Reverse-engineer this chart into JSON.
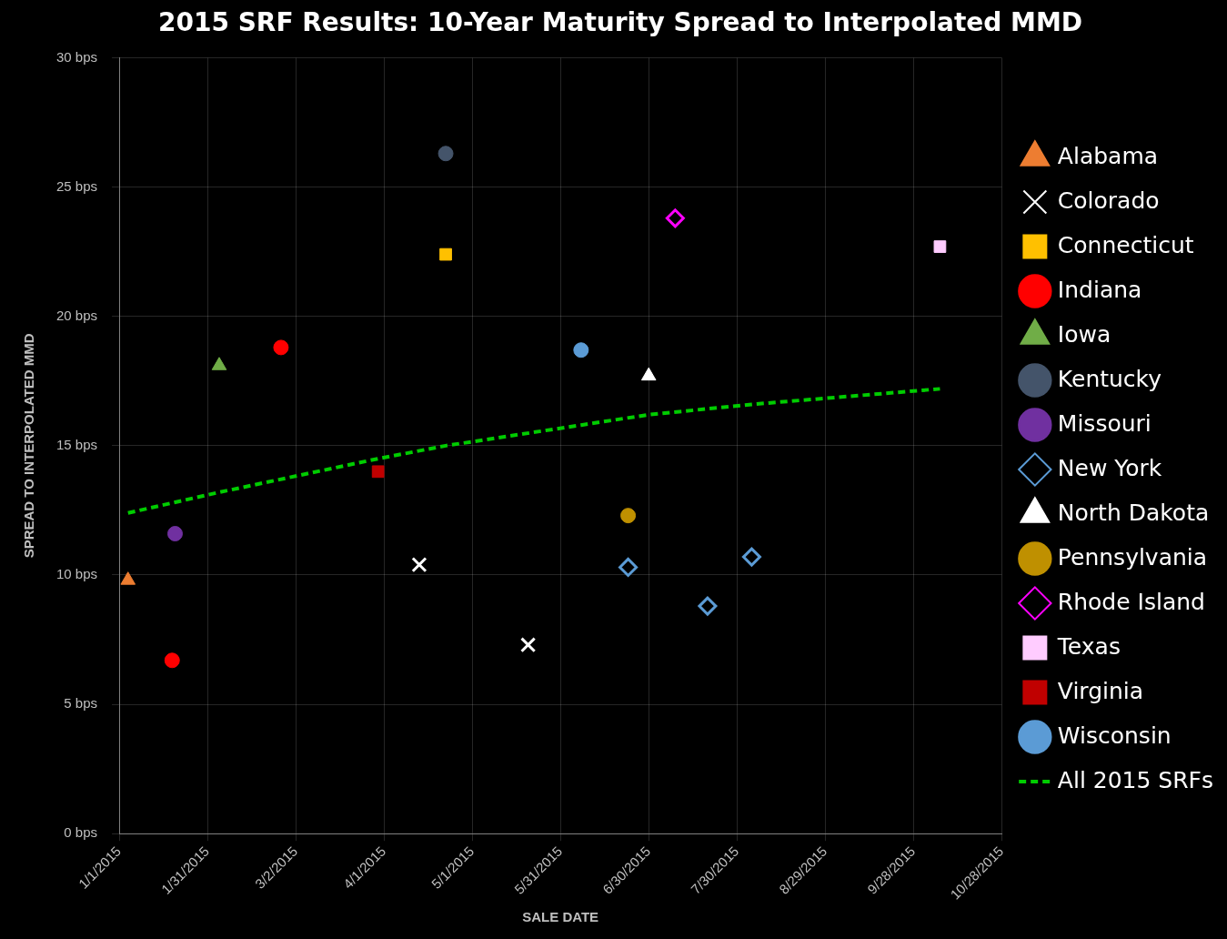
{
  "chart_data": {
    "type": "scatter",
    "title": "2015 SRF Results: 10-Year Maturity Spread to Interpolated MMD",
    "xlabel": "SALE DATE",
    "ylabel": "SPREAD TO INTERPOLATED MMD",
    "xlim": [
      "2015-01-01",
      "2015-10-28"
    ],
    "xticks": [
      {
        "value": "2015-01-01",
        "label": "1/1/2015"
      },
      {
        "value": "2015-01-31",
        "label": "1/31/2015"
      },
      {
        "value": "2015-03-02",
        "label": "3/2/2015"
      },
      {
        "value": "2015-04-01",
        "label": "4/1/2015"
      },
      {
        "value": "2015-05-01",
        "label": "5/1/2015"
      },
      {
        "value": "2015-05-31",
        "label": "5/31/2015"
      },
      {
        "value": "2015-06-30",
        "label": "6/30/2015"
      },
      {
        "value": "2015-07-30",
        "label": "7/30/2015"
      },
      {
        "value": "2015-08-29",
        "label": "8/29/2015"
      },
      {
        "value": "2015-09-28",
        "label": "9/28/2015"
      },
      {
        "value": "2015-10-28",
        "label": "10/28/2015"
      }
    ],
    "ylim": [
      0,
      30
    ],
    "yticks": [
      {
        "value": 0,
        "label": "0 bps"
      },
      {
        "value": 5,
        "label": "5 bps"
      },
      {
        "value": 10,
        "label": "10 bps"
      },
      {
        "value": 15,
        "label": "15 bps"
      },
      {
        "value": 20,
        "label": "20 bps"
      },
      {
        "value": 25,
        "label": "25 bps"
      },
      {
        "value": 30,
        "label": "30 bps"
      }
    ],
    "grid": true,
    "legend": "right",
    "series": [
      {
        "name": "Alabama",
        "color": "#ed7d31",
        "marker": "triangle",
        "x": [
          "2015-01-04"
        ],
        "values": [
          9.8
        ]
      },
      {
        "name": "Colorado",
        "color": "#ffffff",
        "marker": "cross",
        "x": [
          "2015-04-13",
          "2015-05-20"
        ],
        "values": [
          10.4,
          7.3
        ]
      },
      {
        "name": "Connecticut",
        "color": "#ffc000",
        "marker": "square",
        "x": [
          "2015-04-22"
        ],
        "values": [
          22.4
        ]
      },
      {
        "name": "Indiana",
        "color": "#ff0000",
        "marker": "circle",
        "x": [
          "2015-02-25",
          "2015-01-19"
        ],
        "values": [
          18.8,
          6.7
        ]
      },
      {
        "name": "Iowa",
        "color": "#70ad47",
        "marker": "triangle",
        "x": [
          "2015-02-04"
        ],
        "values": [
          18.1
        ]
      },
      {
        "name": "Kentucky",
        "color": "#44546a",
        "marker": "circle",
        "x": [
          "2015-04-22"
        ],
        "values": [
          26.3
        ]
      },
      {
        "name": "Missouri",
        "color": "#7030a0",
        "marker": "circle",
        "x": [
          "2015-01-20"
        ],
        "values": [
          11.6
        ]
      },
      {
        "name": "New York",
        "color": "#5b9bd5",
        "marker": "diamond",
        "x": [
          "2015-06-23",
          "2015-07-20",
          "2015-08-04"
        ],
        "values": [
          10.3,
          8.8,
          10.7
        ]
      },
      {
        "name": "North Dakota",
        "color": "#ffffff",
        "marker": "triangle",
        "x": [
          "2015-06-30"
        ],
        "values": [
          17.7
        ]
      },
      {
        "name": "Pennsylvania",
        "color": "#bf9000",
        "marker": "circle",
        "x": [
          "2015-06-23"
        ],
        "values": [
          12.3
        ]
      },
      {
        "name": "Rhode Island",
        "color": "#ff00ff",
        "marker": "diamond",
        "x": [
          "2015-07-09"
        ],
        "values": [
          23.8
        ]
      },
      {
        "name": "Texas",
        "color": "#ffccff",
        "marker": "square",
        "x": [
          "2015-10-07"
        ],
        "values": [
          22.7
        ]
      },
      {
        "name": "Virginia",
        "color": "#c00000",
        "marker": "square",
        "x": [
          "2015-03-30"
        ],
        "values": [
          14.0
        ]
      },
      {
        "name": "Wisconsin",
        "color": "#5b9bd5",
        "marker": "circle",
        "x": [
          "2015-06-07"
        ],
        "values": [
          18.7
        ]
      },
      {
        "name": "All 2015 SRFs",
        "type": "line",
        "color": "#00cc00",
        "line_style": "dashed",
        "marker": "none",
        "x": [
          "2015-01-04",
          "2015-02-04",
          "2015-03-30",
          "2015-04-22",
          "2015-06-07",
          "2015-06-30",
          "2015-08-04",
          "2015-10-07"
        ],
        "values": [
          12.4,
          13.2,
          14.5,
          15.0,
          15.8,
          16.2,
          16.6,
          17.2
        ]
      }
    ]
  }
}
